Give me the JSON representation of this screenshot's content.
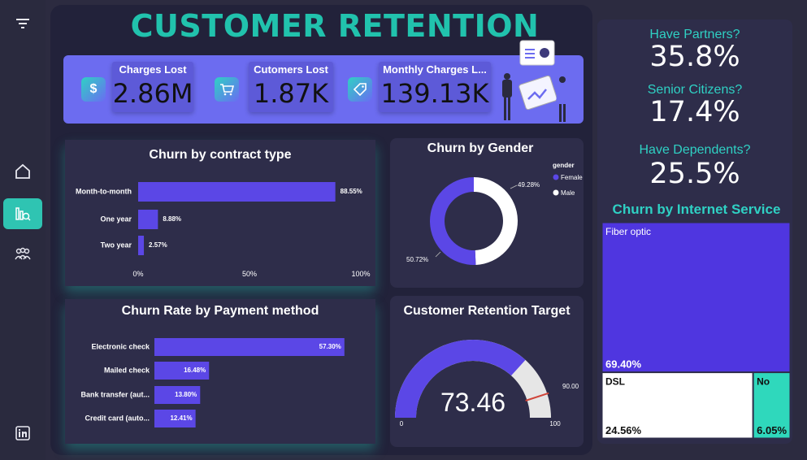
{
  "title": "CUSTOMER RETENTION",
  "kpis": [
    {
      "label": "Charges Lost",
      "value": "2.86M",
      "icon": "dollar-icon",
      "glyph": "$"
    },
    {
      "label": "Cutomers Lost",
      "value": "1.87K",
      "icon": "cart-icon",
      "glyph": "🛒"
    },
    {
      "label": "Monthly Charges L...",
      "value": "139.13K",
      "icon": "tag-icon",
      "glyph": "🏷"
    }
  ],
  "stats": [
    {
      "label": "Have Partners?",
      "value": "35.8%"
    },
    {
      "label": "Senior Citizens?",
      "value": "17.4%"
    },
    {
      "label": "Have Dependents?",
      "value": "25.5%"
    }
  ],
  "colors": {
    "accent": "#21c2ad",
    "bar": "#5b47e6",
    "band": "#6c6cf0",
    "card": "#2e2d4a"
  },
  "chart_data": [
    {
      "id": "contract",
      "type": "bar",
      "orientation": "horizontal",
      "title": "Churn by contract type",
      "categories": [
        "Month-to-month",
        "One year",
        "Two year"
      ],
      "values": [
        88.55,
        8.88,
        2.57
      ],
      "labels": [
        "88.55%",
        "8.88%",
        "2.57%"
      ],
      "xlim": [
        0,
        100
      ],
      "xticks": [
        "0%",
        "50%",
        "100%"
      ]
    },
    {
      "id": "payment",
      "type": "bar",
      "orientation": "horizontal",
      "title": "Churn Rate by Payment method",
      "categories": [
        "Electronic check",
        "Mailed check",
        "Bank transfer (aut...",
        "Credit card (auto..."
      ],
      "values": [
        57.3,
        16.48,
        13.8,
        12.41
      ],
      "labels": [
        "57.30%",
        "16.48%",
        "13.80%",
        "12.41%"
      ],
      "xlim": [
        0,
        100
      ]
    },
    {
      "id": "gender",
      "type": "pie",
      "donut": true,
      "title": "Churn by Gender",
      "legend_title": "gender",
      "categories": [
        "Female",
        "Male"
      ],
      "values": [
        50.72,
        49.28
      ],
      "labels": [
        "50.72%",
        "49.28%"
      ],
      "colors": [
        "#5b47e6",
        "#ffffff"
      ]
    },
    {
      "id": "target",
      "type": "gauge",
      "title": "Customer Retention Target",
      "value": 73.46,
      "value_label": "73.46",
      "min": 0,
      "max": 100,
      "min_label": "0",
      "max_label": "100",
      "target": 90.0,
      "target_label": "90.00"
    },
    {
      "id": "internet",
      "type": "treemap",
      "title": "Churn by Internet Service",
      "categories": [
        "Fiber optic",
        "DSL",
        "No"
      ],
      "values": [
        69.4,
        24.56,
        6.05
      ],
      "labels": [
        "69.40%",
        "24.56%",
        "6.05%"
      ],
      "colors": [
        "#4f36e0",
        "#ffffff",
        "#2fd8bc"
      ]
    }
  ]
}
